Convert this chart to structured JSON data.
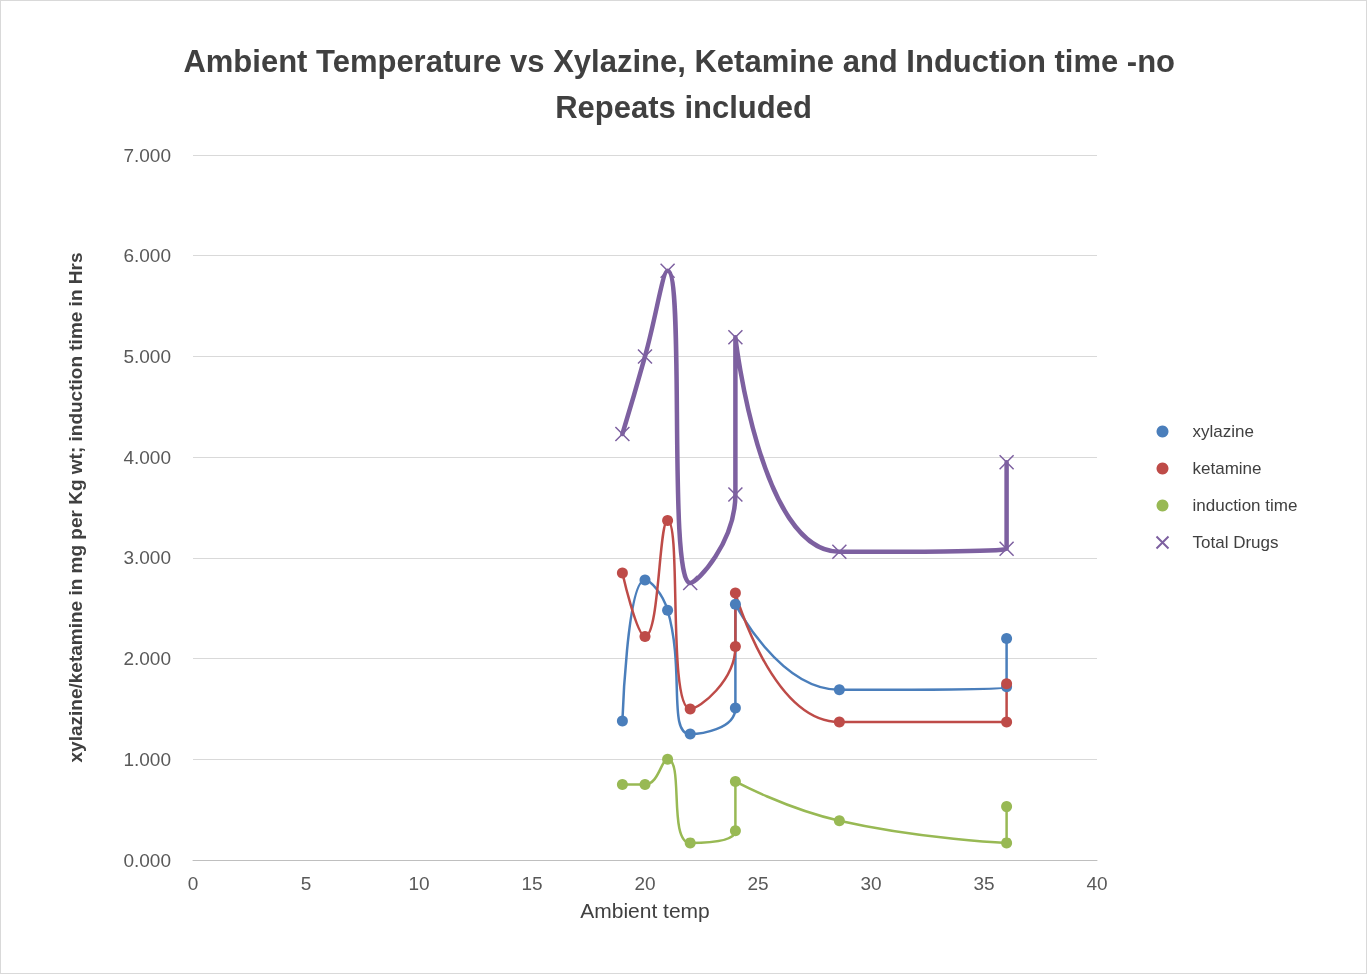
{
  "chart_data": {
    "type": "line",
    "title": "Ambient Temperature vs Xylazine, Ketamine and Induction time -no Repeats included",
    "xlabel": "Ambient temp",
    "ylabel": "xylazine/ketamine in mg per Kg wt; induction time in Hrs",
    "x": [
      19,
      20,
      21,
      22,
      24,
      24,
      28.6,
      36,
      36
    ],
    "series": [
      {
        "name": "xylazine",
        "color": "#4a7ebb",
        "marker": "circle",
        "values": [
          1.38,
          2.78,
          2.48,
          1.25,
          1.51,
          2.54,
          1.69,
          1.72,
          2.2
        ]
      },
      {
        "name": "ketamine",
        "color": "#be4b48",
        "marker": "circle",
        "values": [
          2.85,
          2.22,
          3.37,
          1.5,
          2.12,
          2.65,
          1.37,
          1.37,
          1.75
        ]
      },
      {
        "name": "induction time",
        "color": "#98b954",
        "marker": "circle",
        "values": [
          0.75,
          0.75,
          1.0,
          0.17,
          0.29,
          0.78,
          0.39,
          0.17,
          0.53
        ]
      },
      {
        "name": "Total Drugs",
        "color": "#7d60a0",
        "marker": "cross",
        "values": [
          4.23,
          5.0,
          5.85,
          2.75,
          3.63,
          5.19,
          3.06,
          3.09,
          3.95
        ]
      }
    ],
    "xlim": [
      0,
      40
    ],
    "xticks": [
      0,
      5,
      10,
      15,
      20,
      25,
      30,
      35,
      40
    ],
    "ylim": [
      0,
      7
    ],
    "yticks": [
      {
        "value": 0,
        "label": "0.000"
      },
      {
        "value": 1,
        "label": "1.000"
      },
      {
        "value": 2,
        "label": "2.000"
      },
      {
        "value": 3,
        "label": "3.000"
      },
      {
        "value": 4,
        "label": "4.000"
      },
      {
        "value": 5,
        "label": "5.000"
      },
      {
        "value": 6,
        "label": "6.000"
      },
      {
        "value": 7,
        "label": "7.000"
      }
    ],
    "grid": "y",
    "legend": "right"
  }
}
